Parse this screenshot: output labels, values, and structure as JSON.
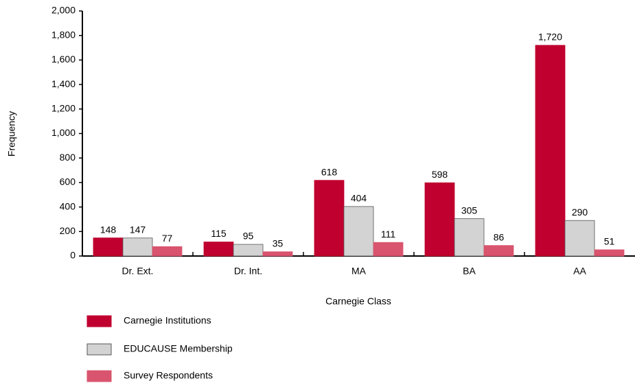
{
  "chart_data": {
    "type": "bar",
    "x_label": "Carnegie Class",
    "y_label": "Frequency",
    "categories": [
      "Dr. Ext.",
      "Dr. Int.",
      "MA",
      "BA",
      "AA"
    ],
    "series": [
      {
        "name": "Carnegie Institutions",
        "color": "#c0002f",
        "values": [
          148,
          115,
          618,
          598,
          1720
        ],
        "value_labels": [
          "148",
          "115",
          "618",
          "598",
          "1,720"
        ]
      },
      {
        "name": "EDUCAUSE Membership",
        "color": "#d3d3d3",
        "values": [
          147,
          95,
          404,
          305,
          290
        ],
        "value_labels": [
          "147",
          "95",
          "404",
          "305",
          "290"
        ]
      },
      {
        "name": "Survey Respondents",
        "color": "#d9546e",
        "values": [
          77,
          35,
          111,
          86,
          51
        ],
        "value_labels": [
          "77",
          "35",
          "111",
          "86",
          "51"
        ]
      }
    ],
    "ylim": [
      0,
      2000
    ],
    "yticks": [
      0,
      200,
      400,
      600,
      800,
      {
        "value": 1000,
        "label": "1,000"
      },
      {
        "value": 1200,
        "label": "1,200"
      },
      {
        "value": 1400,
        "label": "1,400"
      },
      {
        "value": 1600,
        "label": "1,600"
      },
      {
        "value": 1800,
        "label": "1,800"
      },
      {
        "value": 2000,
        "label": "2,000"
      }
    ],
    "grid": false,
    "legend": "bottom-left"
  }
}
